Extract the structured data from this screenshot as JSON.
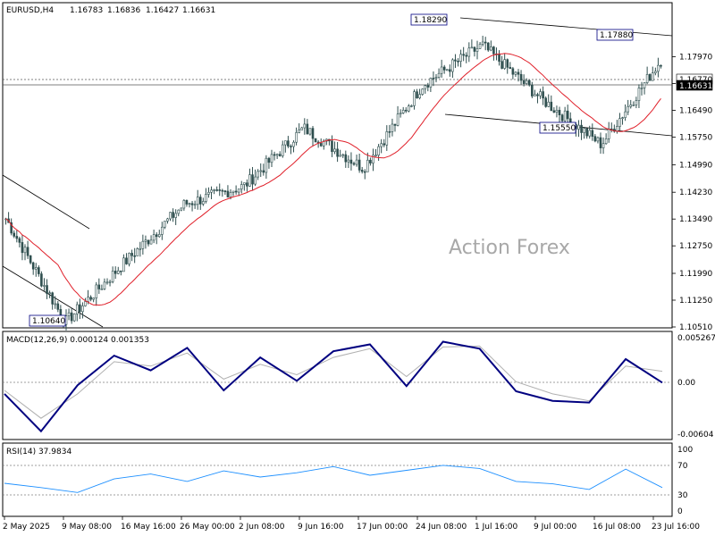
{
  "header": {
    "symbol": "EURUSD,H4",
    "open": "1.16783",
    "high": "1.16836",
    "low": "1.16427",
    "close": "1.16631"
  },
  "watermark": "Action Forex",
  "colors": {
    "candles": "#2f4f4f",
    "ma": "#e0202a",
    "macd": "#000080",
    "signal": "#b0b0b0",
    "rsi": "#1e90ff",
    "channel": "#000000",
    "grid_dotted": "#808080"
  },
  "chart_data": [
    {
      "type": "candlestick",
      "title": "EURUSD,H4",
      "ylim": [
        1.1051,
        1.187
      ],
      "y_ticks": [
        "1.17970",
        "1.17230",
        "1.16490",
        "1.15750",
        "1.14990",
        "1.14230",
        "1.13490",
        "1.12750",
        "1.11990",
        "1.11250",
        "1.10510"
      ],
      "current_price_labels": [
        "1.16770",
        "1.16631"
      ],
      "annotations": [
        "1.18290",
        "1.17880",
        "1.15550",
        "1.10640"
      ],
      "x_ticks": [
        "2 May 2025",
        "9 May 08:00",
        "16 May 16:00",
        "26 May 00:00",
        "2 Jun 08:00",
        "9 Jun 16:00",
        "17 Jun 00:00",
        "24 Jun 08:00",
        "1 Jul 16:00",
        "9 Jul 00:00",
        "16 Jul 08:00",
        "23 Jul 16:00"
      ],
      "key_points": [
        {
          "x": "2 May 2025",
          "y": 1.135
        },
        {
          "x": "9 May 08:00",
          "y": 1.1064
        },
        {
          "x": "16 May 16:00",
          "y": 1.123
        },
        {
          "x": "26 May 00:00",
          "y": 1.139
        },
        {
          "x": "2 Jun 08:00",
          "y": 1.144
        },
        {
          "x": "9 Jun 16:00",
          "y": 1.16
        },
        {
          "x": "17 Jun 00:00",
          "y": 1.149
        },
        {
          "x": "24 Jun 08:00",
          "y": 1.172
        },
        {
          "x": "1 Jul 16:00",
          "y": 1.1829
        },
        {
          "x": "9 Jul 00:00",
          "y": 1.168
        },
        {
          "x": "16 Jul 08:00",
          "y": 1.1555
        },
        {
          "x": "23 Jul 16:00",
          "y": 1.1788
        }
      ]
    },
    {
      "type": "line",
      "title": "MACD(12,26,9) 0.000124 0.001353",
      "ylim": [
        -0.00604,
        0.005267
      ],
      "y_ticks": [
        "0.005267",
        "0.00",
        "-0.00604"
      ],
      "series": [
        {
          "name": "MACD",
          "values": [
            -0.0012,
            -0.0055,
            -0.0002,
            0.0032,
            0.0015,
            0.0041,
            -0.0008,
            0.003,
            0.0003,
            0.0037,
            0.0045,
            -0.0003,
            0.0048,
            0.004,
            -0.0009,
            -0.002,
            -0.0022,
            0.0028,
            0.0001
          ]
        },
        {
          "name": "Signal",
          "values": [
            -0.0008,
            -0.004,
            -0.0012,
            0.0025,
            0.002,
            0.0035,
            0.0005,
            0.0022,
            0.001,
            0.003,
            0.004,
            0.0008,
            0.0042,
            0.0043,
            0.0002,
            -0.0012,
            -0.002,
            0.002,
            0.0014
          ]
        }
      ]
    },
    {
      "type": "line",
      "title": "RSI(14) 37.9834",
      "ylim": [
        0,
        100
      ],
      "y_ticks": [
        "100",
        "70",
        "30",
        "0"
      ],
      "series": [
        {
          "name": "RSI",
          "values": [
            45,
            38,
            30,
            52,
            60,
            48,
            65,
            55,
            62,
            72,
            58,
            66,
            74,
            69,
            48,
            44,
            35,
            68,
            38
          ]
        }
      ]
    }
  ]
}
